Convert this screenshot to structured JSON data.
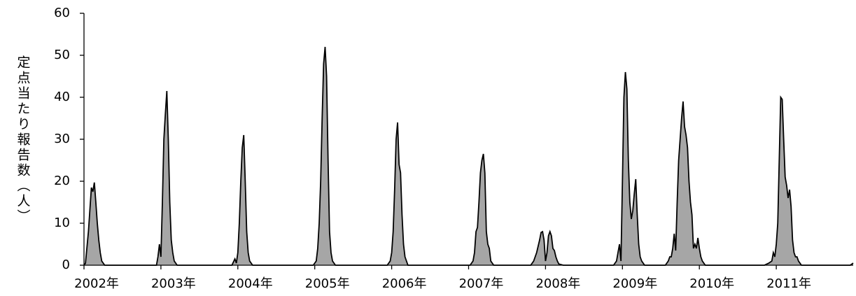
{
  "chart_data": {
    "type": "area",
    "y_label": "定点当たり報告数（人）",
    "color": "#a6a6a6",
    "line_color": "#000000",
    "xlim": [
      0,
      520
    ],
    "xticks": [
      {
        "value": 0,
        "label": "2002年"
      },
      {
        "value": 52,
        "label": "2003年"
      },
      {
        "value": 104,
        "label": "2004年"
      },
      {
        "value": 156,
        "label": "2005年"
      },
      {
        "value": 208,
        "label": "2006年"
      },
      {
        "value": 260,
        "label": "2007年"
      },
      {
        "value": 312,
        "label": "2008年"
      },
      {
        "value": 364,
        "label": "2009年"
      },
      {
        "value": 416,
        "label": "2010年"
      },
      {
        "value": 468,
        "label": "2011年"
      }
    ],
    "ylim": [
      0,
      60
    ],
    "yticks": [
      0,
      10,
      20,
      30,
      40,
      50,
      60
    ],
    "grid": false,
    "x": [
      0,
      1,
      3,
      5,
      6,
      7,
      8,
      9,
      10,
      11,
      12,
      14,
      49,
      50,
      51,
      52,
      53,
      54,
      55,
      56,
      57,
      58,
      59,
      60,
      61,
      63,
      100,
      102,
      103,
      104,
      105,
      106,
      107,
      108,
      109,
      110,
      111,
      112,
      114,
      155,
      157,
      158,
      159,
      160,
      161,
      162,
      163,
      164,
      165,
      166,
      167,
      168,
      170,
      205,
      207,
      208,
      209,
      210,
      211,
      212,
      213,
      214,
      215,
      216,
      217,
      219,
      261,
      263,
      264,
      265,
      266,
      267,
      268,
      269,
      270,
      271,
      272,
      273,
      274,
      275,
      277,
      302,
      304,
      306,
      308,
      309,
      310,
      311,
      312,
      313,
      314,
      315,
      316,
      317,
      318,
      319,
      320,
      321,
      324,
      358,
      360,
      361,
      362,
      363,
      364,
      365,
      366,
      367,
      368,
      369,
      370,
      371,
      372,
      373,
      374,
      375,
      376,
      377,
      379,
      393,
      395,
      396,
      397,
      398,
      399,
      400,
      401,
      402,
      403,
      404,
      405,
      406,
      407,
      408,
      409,
      410,
      411,
      412,
      413,
      414,
      415,
      416,
      417,
      418,
      420,
      460,
      463,
      465,
      466,
      467,
      468,
      469,
      470,
      471,
      472,
      473,
      474,
      475,
      476,
      477,
      478,
      479,
      480,
      481,
      482,
      483,
      485,
      518,
      520
    ],
    "values": [
      0,
      0.5,
      8,
      18.5,
      17.5,
      19.7,
      15,
      10,
      6,
      3,
      1,
      0,
      0,
      2,
      5,
      2,
      15,
      30,
      36,
      41.5,
      30,
      15,
      6,
      3,
      1,
      0,
      0,
      1.5,
      0.5,
      3,
      10,
      20,
      28,
      31,
      20,
      8,
      3,
      1,
      0,
      0,
      1,
      4,
      10,
      20,
      35,
      48,
      52,
      45,
      25,
      8,
      3,
      1,
      0,
      0,
      1,
      3,
      8,
      18,
      30,
      34,
      24,
      22,
      12,
      5,
      2,
      0,
      0,
      1,
      3,
      8,
      9,
      15,
      22,
      25,
      26.5,
      22,
      8,
      5,
      4,
      1,
      0,
      0,
      1,
      3,
      6,
      7.8,
      8,
      6,
      1,
      3,
      7,
      8,
      7,
      4,
      3.5,
      2,
      1,
      0.3,
      0,
      0,
      1,
      3,
      5,
      1,
      20,
      40,
      46,
      42,
      25,
      15,
      11,
      13,
      17,
      20.5,
      12,
      5,
      2,
      1,
      0,
      0,
      1,
      2,
      2,
      4,
      7.5,
      3.5,
      15,
      25,
      30,
      35,
      39,
      33,
      31,
      28,
      20,
      15,
      12,
      4,
      5,
      4,
      6.5,
      4,
      2,
      1,
      0,
      0,
      0.5,
      1,
      3,
      2,
      5,
      10,
      25,
      40,
      39.5,
      30,
      21,
      19,
      16,
      18,
      14,
      6,
      3,
      2,
      2,
      1,
      0,
      0,
      0.5
    ]
  }
}
